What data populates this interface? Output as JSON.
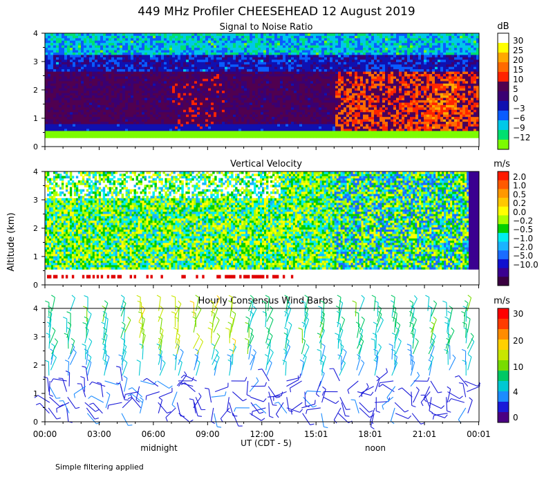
{
  "title": "449 MHz Profiler CHEESEHEAD 12 August 2019",
  "ylabel": "Altitude (km)",
  "xlabel": "UT  (CDT - 5)",
  "x_ticks": [
    "00:00",
    "03:00",
    "06:00",
    "09:00",
    "12:00",
    "15:01",
    "18:01",
    "21:01",
    "00:01"
  ],
  "local_labels": [
    "midnight",
    "noon"
  ],
  "footnote": "Simple filtering applied",
  "colors": {
    "snr_scale": [
      "#7cfc00",
      "#00e070",
      "#00c8e8",
      "#0a5cff",
      "#1010b0",
      "#3a0072",
      "#500050",
      "#ff2400",
      "#ff6a00",
      "#ffa800",
      "#ffff00",
      "#ffffff"
    ],
    "vv_scale": [
      "#3a0040",
      "#3a0090",
      "#1010d0",
      "#1a6cff",
      "#19b4ff",
      "#00eef0",
      "#00d000",
      "#a8ff00",
      "#ffff00",
      "#ffc800",
      "#ff9800",
      "#ff5a00",
      "#ff1a00"
    ],
    "wind_scale": [
      "#4b0082",
      "#1a1ad8",
      "#1c8cff",
      "#00c8d2",
      "#00c864",
      "#78dc00",
      "#c8e600",
      "#ffd000",
      "#ff8c00",
      "#ff3c00",
      "#ff0000"
    ]
  },
  "chart_data": [
    {
      "type": "heatmap",
      "title": "Signal to Noise Ratio",
      "units": "dB",
      "x_range": [
        0,
        24.02
      ],
      "y_range": [
        0,
        4
      ],
      "y_ticks": [
        "0",
        "1",
        "2",
        "3",
        "4"
      ],
      "colorbar_labels": [
        "30",
        "25",
        "20",
        "15",
        "10",
        "5",
        "0",
        "−3",
        "−6",
        "−9",
        "−12"
      ]
    },
    {
      "type": "heatmap",
      "title": "Vertical Velocity",
      "units": "m/s",
      "x_range": [
        0,
        24.02
      ],
      "y_range": [
        0,
        4
      ],
      "y_ticks": [
        "0",
        "1",
        "2",
        "3",
        "4"
      ],
      "colorbar_labels": [
        "2.0",
        "1.0",
        "0.5",
        "0.2",
        "0.0",
        "−0.2",
        "−0.5",
        "−1.0",
        "−2.0",
        "−5.0",
        "−10.0"
      ]
    },
    {
      "type": "scatter",
      "title": "Hourly Consensus Wind Barbs",
      "units": "m/s",
      "x_range": [
        0,
        24.02
      ],
      "y_range": [
        0,
        4
      ],
      "y_ticks": [
        "0",
        "1",
        "2",
        "3",
        "4"
      ],
      "colorbar_labels": [
        "30",
        "20",
        "10",
        "4",
        "0"
      ]
    }
  ]
}
